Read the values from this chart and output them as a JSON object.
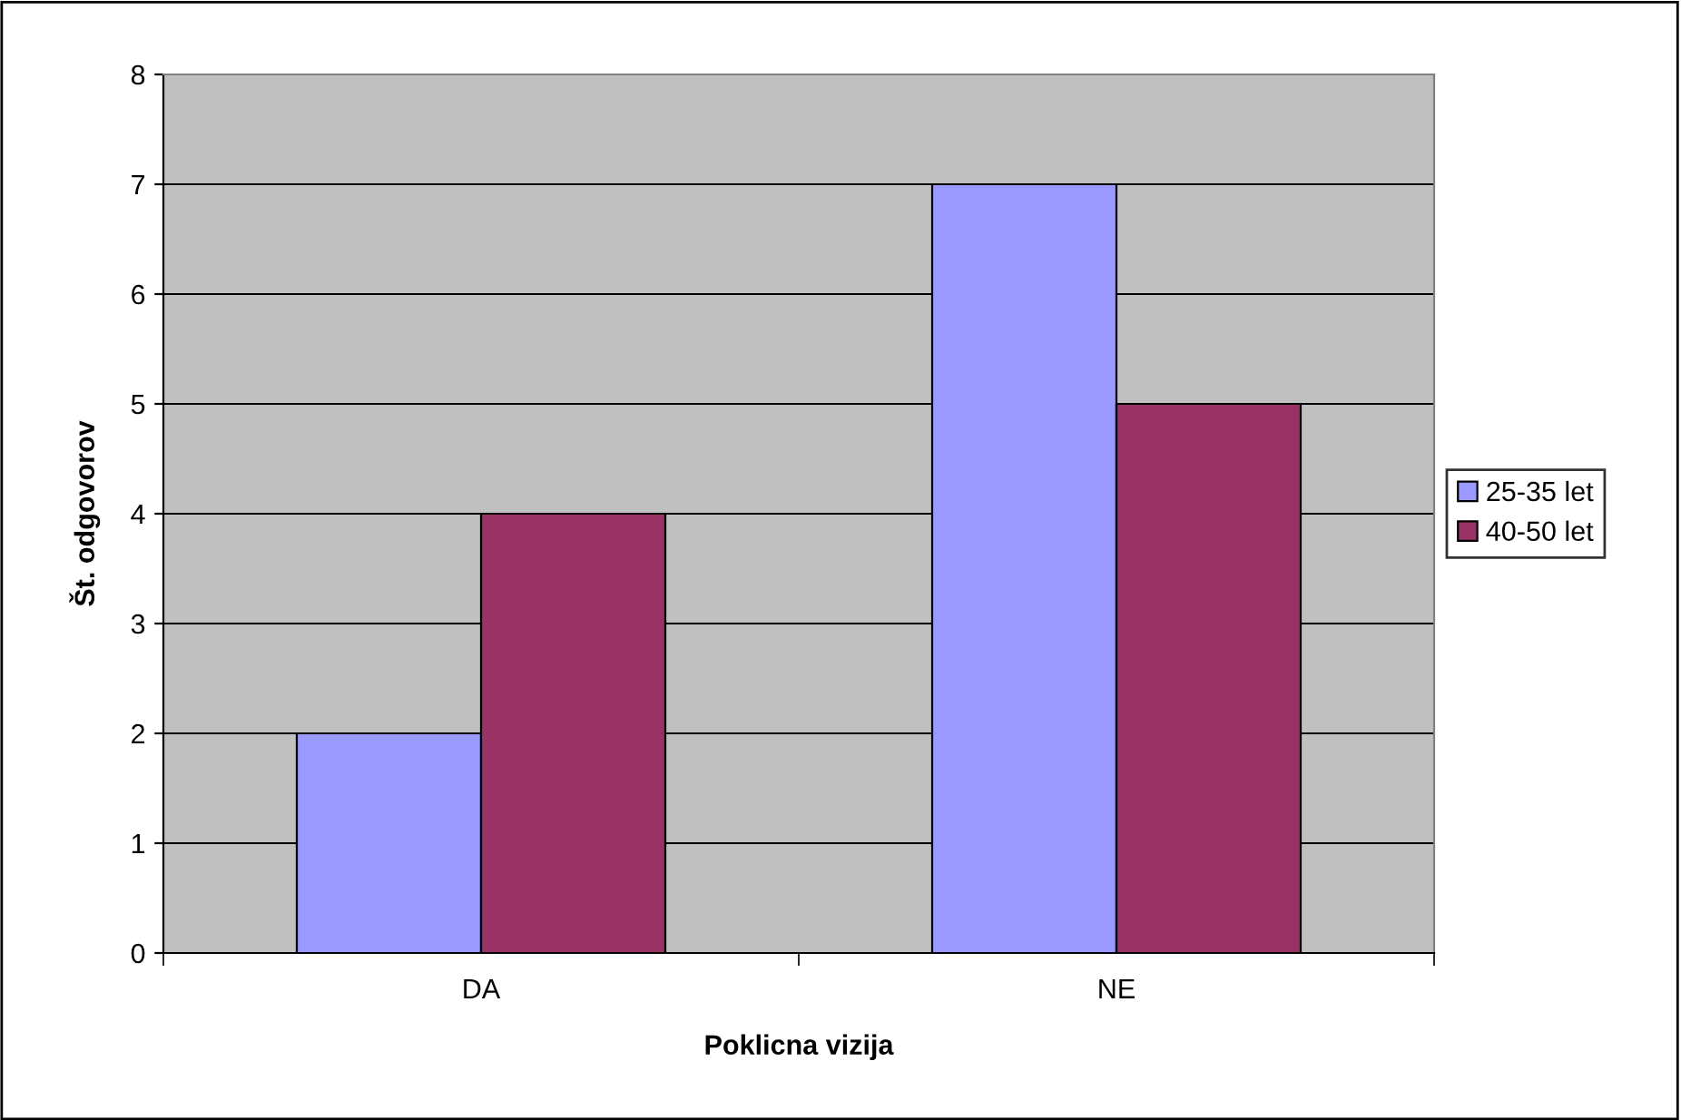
{
  "chart_data": {
    "type": "bar",
    "xlabel": "Poklicna vizija",
    "ylabel": "Št. odgovorov",
    "categories": [
      "DA",
      "NE"
    ],
    "series": [
      {
        "name": "25-35 let",
        "color": "#9999ff",
        "values": [
          2,
          7
        ]
      },
      {
        "name": "40-50 let",
        "color": "#993366",
        "values": [
          4,
          5
        ]
      }
    ],
    "ylim": [
      0,
      8
    ],
    "yticks": [
      0,
      1,
      2,
      3,
      4,
      5,
      6,
      7,
      8
    ],
    "grid": "y",
    "legend": "right"
  }
}
